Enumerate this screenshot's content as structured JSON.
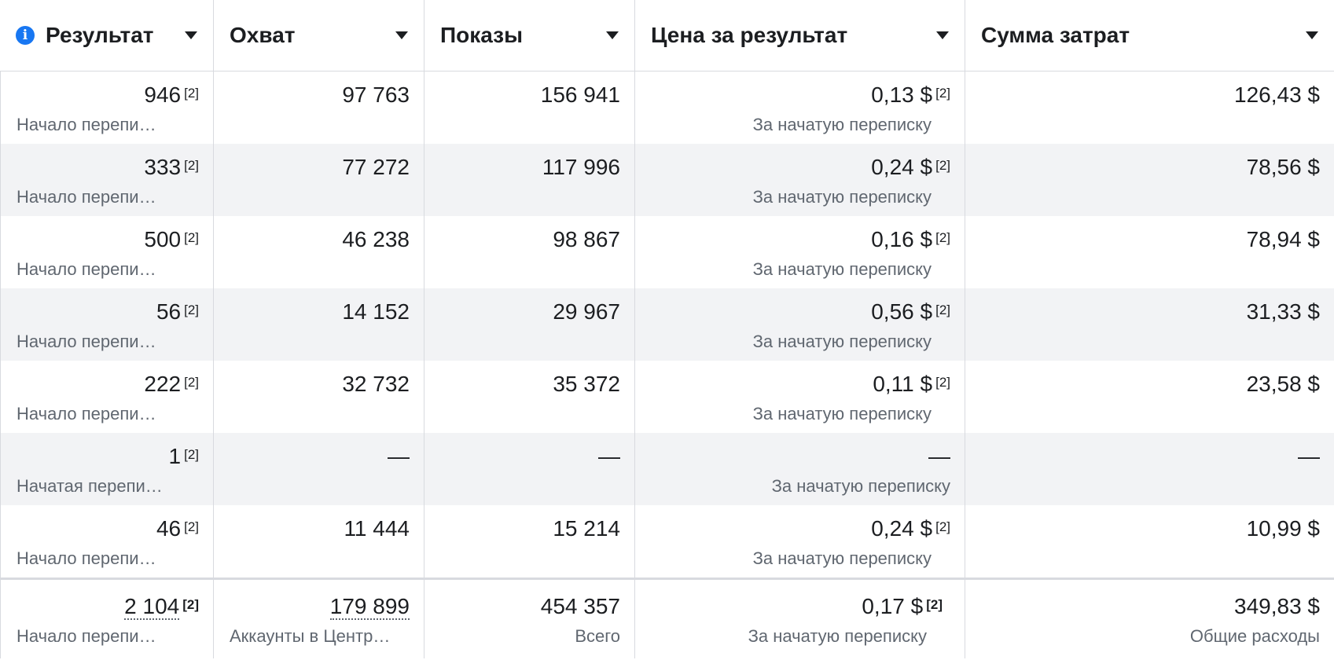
{
  "columns": [
    {
      "label": "Результат",
      "has_info_icon": true
    },
    {
      "label": "Охват"
    },
    {
      "label": "Показы"
    },
    {
      "label": "Цена за результат"
    },
    {
      "label": "Сумма затрат"
    }
  ],
  "footnote_marker": "[2]",
  "rows": [
    {
      "result": "946",
      "result_sub": "Начало перепи…",
      "reach": "97 763",
      "impressions": "156 941",
      "cpr": "0,13 $",
      "cpr_sub": "За начатую переписку",
      "spend": "126,43 $"
    },
    {
      "result": "333",
      "result_sub": "Начало перепи…",
      "reach": "77 272",
      "impressions": "117 996",
      "cpr": "0,24 $",
      "cpr_sub": "За начатую переписку",
      "spend": "78,56 $"
    },
    {
      "result": "500",
      "result_sub": "Начало перепи…",
      "reach": "46 238",
      "impressions": "98 867",
      "cpr": "0,16 $",
      "cpr_sub": "За начатую переписку",
      "spend": "78,94 $"
    },
    {
      "result": "56",
      "result_sub": "Начало перепи…",
      "reach": "14 152",
      "impressions": "29 967",
      "cpr": "0,56 $",
      "cpr_sub": "За начатую переписку",
      "spend": "31,33 $"
    },
    {
      "result": "222",
      "result_sub": "Начало перепи…",
      "reach": "32 732",
      "impressions": "35 372",
      "cpr": "0,11 $",
      "cpr_sub": "За начатую переписку",
      "spend": "23,58 $"
    },
    {
      "result": "1",
      "result_sub": "Начатая перепи…",
      "reach": "—",
      "impressions": "—",
      "cpr": "—",
      "cpr_sub": "За начатую переписку",
      "spend": "—"
    },
    {
      "result": "46",
      "result_sub": "Начало перепи…",
      "reach": "11 444",
      "impressions": "15 214",
      "cpr": "0,24 $",
      "cpr_sub": "За начатую переписку",
      "spend": "10,99 $"
    }
  ],
  "totals": {
    "result": "2 104",
    "result_sub": "Начало перепи…",
    "reach": "179 899",
    "reach_sub": "Аккаунты в Центр…",
    "impressions": "454 357",
    "impressions_sub": "Всего",
    "cpr": "0,17 $",
    "cpr_sub": "За начатую переписку",
    "spend": "349,83 $",
    "spend_sub": "Общие расходы"
  }
}
